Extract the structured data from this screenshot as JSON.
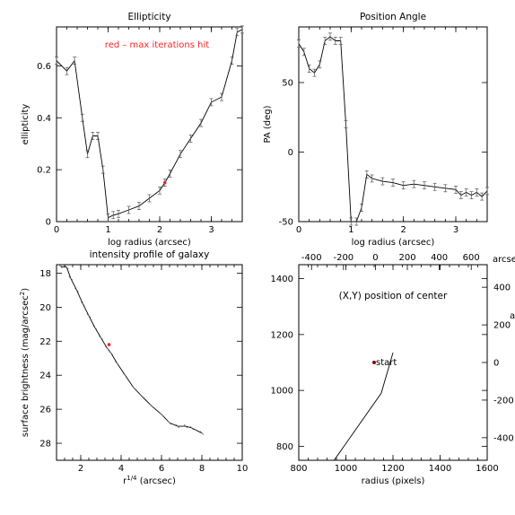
{
  "chart_data": [
    {
      "id": "ell",
      "type": "line",
      "title": "Ellipticity",
      "xlabel": "log radius (arcsec)",
      "ylabel": "ellipticity",
      "xlim": [
        0,
        3.6
      ],
      "ylim": [
        0,
        0.75
      ],
      "xticks": [
        0,
        1,
        2,
        3
      ],
      "yticks": [
        0,
        0.2,
        0.4,
        0.6
      ],
      "annotation": "red – max iterations hit",
      "annotation_color": "#ff2222",
      "x": [
        0.0,
        0.2,
        0.35,
        0.5,
        0.6,
        0.7,
        0.8,
        0.9,
        1.0,
        1.1,
        1.2,
        1.4,
        1.6,
        1.8,
        2.0,
        2.1,
        2.2,
        2.4,
        2.6,
        2.8,
        3.0,
        3.2,
        3.4,
        3.5,
        3.6
      ],
      "y": [
        0.62,
        0.58,
        0.62,
        0.4,
        0.26,
        0.33,
        0.33,
        0.2,
        0.015,
        0.025,
        0.03,
        0.045,
        0.06,
        0.09,
        0.12,
        0.15,
        0.185,
        0.26,
        0.32,
        0.38,
        0.46,
        0.48,
        0.62,
        0.73,
        0.74
      ],
      "red_points": [
        [
          2.1,
          0.15
        ]
      ]
    },
    {
      "id": "pa",
      "type": "line",
      "title": "Position Angle",
      "xlabel": "log radius (arcsec)",
      "ylabel": "PA (deg)",
      "xlim": [
        0,
        3.6
      ],
      "ylim": [
        -50,
        90
      ],
      "xticks": [
        0,
        1,
        2,
        3
      ],
      "yticks": [
        -50,
        0,
        50
      ],
      "x": [
        0.0,
        0.1,
        0.2,
        0.3,
        0.4,
        0.5,
        0.6,
        0.7,
        0.8,
        0.9,
        1.0,
        1.1,
        1.2,
        1.3,
        1.4,
        1.6,
        1.8,
        2.0,
        2.2,
        2.4,
        2.6,
        2.8,
        3.0,
        3.1,
        3.2,
        3.3,
        3.4,
        3.5,
        3.6
      ],
      "y": [
        78,
        72,
        60,
        57,
        63,
        80,
        83,
        80,
        80,
        20,
        -50,
        -50,
        -40,
        -16,
        -19,
        -21,
        -22,
        -24,
        -23,
        -24,
        -25,
        -26,
        -27,
        -31,
        -29,
        -31,
        -29,
        -32,
        -28
      ]
    },
    {
      "id": "sb",
      "type": "line",
      "title": "intensity profile of galaxy",
      "xlabel": "r",
      "xlabel_sup": "1/4",
      "xlabel_rest": " (arcsec)",
      "ylabel": "surface brightness (mag/arcsec",
      "ylabel_sup": "2",
      "ylabel_rest": ")",
      "xlim": [
        0.8,
        10
      ],
      "ylim": [
        29,
        17.5
      ],
      "xticks": [
        2,
        4,
        6,
        8,
        10
      ],
      "yticks": [
        18,
        20,
        22,
        24,
        26,
        28
      ],
      "x": [
        1.0,
        1.3,
        1.5,
        1.8,
        2.1,
        2.4,
        2.7,
        3.0,
        3.3,
        3.5,
        3.8,
        4.2,
        4.6,
        5.0,
        5.5,
        6.0,
        6.4,
        6.8,
        7.2,
        7.5,
        8.0
      ],
      "y": [
        17.6,
        17.65,
        18.3,
        19.0,
        19.8,
        20.5,
        21.2,
        21.8,
        22.4,
        22.7,
        23.3,
        24.0,
        24.7,
        25.2,
        25.8,
        26.3,
        26.8,
        27.0,
        27.0,
        27.1,
        27.4
      ],
      "red_points": [
        [
          3.4,
          22.2
        ]
      ]
    },
    {
      "id": "xy",
      "type": "line",
      "title": "(X,Y) position of center",
      "xlabel": "radius (pixels)",
      "top_axis_label": "arcsec",
      "right_axis_label": "arcsec",
      "xlim": [
        800,
        1600
      ],
      "ylim": [
        750,
        1450
      ],
      "xticks": [
        800,
        1000,
        1200,
        1400,
        1600
      ],
      "yticks": [
        800,
        1000,
        1200,
        1400
      ],
      "top_ticks": [
        -400,
        -200,
        0,
        200,
        400,
        600
      ],
      "right_ticks": [
        400,
        200,
        0,
        -200,
        -400
      ],
      "x": [
        950,
        1150,
        1200
      ],
      "y": [
        750,
        990,
        1135
      ],
      "start_label": "start",
      "start_point": [
        1120,
        1100
      ]
    }
  ]
}
